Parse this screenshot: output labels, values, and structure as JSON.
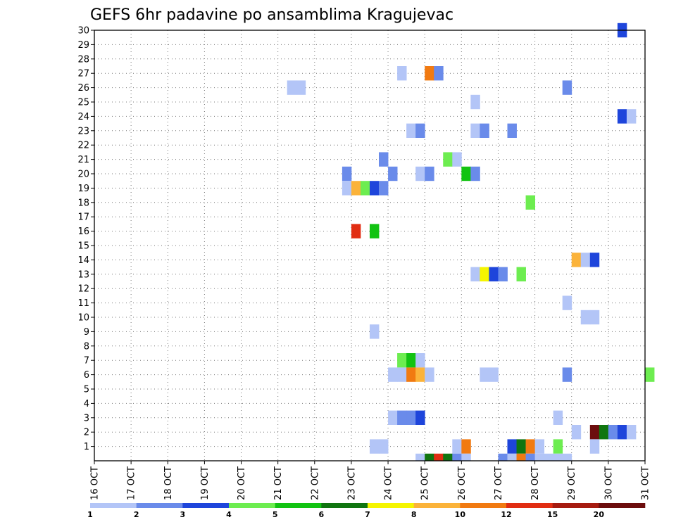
{
  "chart_data": {
    "type": "heatmap",
    "title": "GEFS 6hr padavine po ansamblima Kragujevac",
    "xlabel": "",
    "ylabel": "",
    "x_range": [
      "16 OCT",
      "31 OCT"
    ],
    "x_ticks": [
      "16 OCT",
      "17 OCT",
      "18 OCT",
      "19 OCT",
      "20 OCT",
      "21 OCT",
      "22 OCT",
      "23 OCT",
      "24 OCT",
      "25 OCT",
      "26 OCT",
      "27 OCT",
      "28 OCT",
      "29 OCT",
      "30 OCT",
      "31 OCT"
    ],
    "y_ticks": [
      "1",
      "2",
      "3",
      "4",
      "5",
      "6",
      "7",
      "8",
      "9",
      "10",
      "11",
      "12",
      "13",
      "14",
      "15",
      "16",
      "17",
      "18",
      "19",
      "20",
      "21",
      "22",
      "23",
      "24",
      "25",
      "26",
      "27",
      "28",
      "29",
      "30"
    ],
    "y_range": [
      0,
      30
    ],
    "grid": true,
    "legend": "colorbar-bottom",
    "colorbar": {
      "labels": [
        "1",
        "2",
        "3",
        "4",
        "5",
        "6",
        "7",
        "8",
        "10",
        "12",
        "15",
        "20"
      ],
      "colors": [
        "#b3c5f7",
        "#6a8bea",
        "#1e45db",
        "#6ded50",
        "#12c312",
        "#107510",
        "#f5f500",
        "#fbb33a",
        "#f17a11",
        "#e12d12",
        "#a61b10",
        "#6c0d0d"
      ]
    },
    "cells_note": "Each cell: [day-of-OCT start, member row, colour class index into colorbar.colors]. A cell spans one 6-hour step.",
    "cells": [
      [
        30.25,
        30,
        2
      ],
      [
        24.25,
        27,
        0
      ],
      [
        25.0,
        27,
        8
      ],
      [
        25.25,
        27,
        1
      ],
      [
        21.25,
        26,
        0
      ],
      [
        21.5,
        26,
        0
      ],
      [
        28.75,
        26,
        1
      ],
      [
        26.25,
        25,
        0
      ],
      [
        30.25,
        24,
        2
      ],
      [
        30.5,
        24,
        0
      ],
      [
        24.5,
        23,
        0
      ],
      [
        24.75,
        23,
        1
      ],
      [
        26.25,
        23,
        0
      ],
      [
        26.5,
        23,
        1
      ],
      [
        27.25,
        23,
        1
      ],
      [
        23.75,
        21,
        1
      ],
      [
        25.5,
        21,
        3
      ],
      [
        25.75,
        21,
        0
      ],
      [
        22.75,
        20,
        1
      ],
      [
        24.0,
        20,
        1
      ],
      [
        24.75,
        20,
        0
      ],
      [
        25.0,
        20,
        1
      ],
      [
        26.0,
        20,
        4
      ],
      [
        26.25,
        20,
        1
      ],
      [
        22.75,
        19,
        0
      ],
      [
        23.0,
        19,
        7
      ],
      [
        23.25,
        19,
        3
      ],
      [
        23.5,
        19,
        2
      ],
      [
        23.75,
        19,
        1
      ],
      [
        27.75,
        18,
        3
      ],
      [
        23.0,
        16,
        9
      ],
      [
        23.5,
        16,
        4
      ],
      [
        29.0,
        14,
        7
      ],
      [
        29.25,
        14,
        0
      ],
      [
        29.5,
        14,
        2
      ],
      [
        26.25,
        13,
        0
      ],
      [
        26.5,
        13,
        6
      ],
      [
        26.75,
        13,
        2
      ],
      [
        27.0,
        13,
        1
      ],
      [
        27.5,
        13,
        3
      ],
      [
        28.75,
        11,
        0
      ],
      [
        29.25,
        10,
        0
      ],
      [
        29.5,
        10,
        0
      ],
      [
        23.5,
        9,
        0
      ],
      [
        24.25,
        7,
        3
      ],
      [
        24.5,
        7,
        4
      ],
      [
        24.75,
        7,
        0
      ],
      [
        24.0,
        6,
        0
      ],
      [
        24.25,
        6,
        0
      ],
      [
        24.5,
        6,
        8
      ],
      [
        24.75,
        6,
        7
      ],
      [
        25.0,
        6,
        0
      ],
      [
        26.5,
        6,
        0
      ],
      [
        26.75,
        6,
        0
      ],
      [
        28.75,
        6,
        1
      ],
      [
        31.0,
        6,
        3
      ],
      [
        24.0,
        3,
        0
      ],
      [
        24.25,
        3,
        1
      ],
      [
        24.5,
        3,
        1
      ],
      [
        24.75,
        3,
        2
      ],
      [
        28.5,
        3,
        0
      ],
      [
        29.0,
        2,
        0
      ],
      [
        29.5,
        2,
        11
      ],
      [
        29.75,
        2,
        5
      ],
      [
        30.0,
        2,
        1
      ],
      [
        30.25,
        2,
        2
      ],
      [
        30.5,
        2,
        0
      ],
      [
        23.5,
        1,
        0
      ],
      [
        23.75,
        1,
        0
      ],
      [
        25.75,
        1,
        0
      ],
      [
        26.0,
        1,
        8
      ],
      [
        27.25,
        1,
        2
      ],
      [
        27.5,
        1,
        5
      ],
      [
        27.75,
        1,
        8
      ],
      [
        28.0,
        1,
        0
      ],
      [
        28.5,
        1,
        3
      ],
      [
        29.5,
        1,
        0
      ],
      [
        24.75,
        0,
        0
      ],
      [
        25.0,
        0,
        5
      ],
      [
        25.25,
        0,
        9
      ],
      [
        25.5,
        0,
        5
      ],
      [
        25.75,
        0,
        1
      ],
      [
        26.0,
        0,
        0
      ],
      [
        27.0,
        0,
        1
      ],
      [
        27.25,
        0,
        0
      ],
      [
        27.5,
        0,
        8
      ],
      [
        27.75,
        0,
        1
      ],
      [
        28.0,
        0,
        0
      ],
      [
        28.25,
        0,
        0
      ],
      [
        28.5,
        0,
        0
      ],
      [
        28.75,
        0,
        0
      ]
    ]
  }
}
